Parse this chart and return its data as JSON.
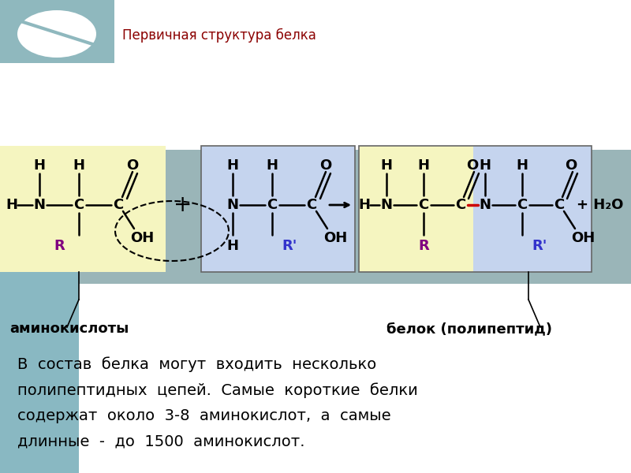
{
  "title": "Первичная структура белка",
  "title_color": "#8B0000",
  "bg_color": "#ffffff",
  "teal_sidebar": "#89b8c2",
  "teal_top_bar": "#8fb8be",
  "yellow_color": "#f5f5c0",
  "blue_color": "#c5d4ee",
  "gray_bg": "#9ab5b8",
  "white_bottom": "#ffffff",
  "label_amino": "аминокислоты",
  "label_protein": "белок (полипептид)",
  "body_line1": "В  состав  белка  могут  входить  несколько",
  "body_line2": "полипептидных  цепей.  Самые  короткие  белки",
  "body_line3": "содержат  около  3-8  аминокислот,  а  самые",
  "body_line4": "длинные  -  до  1500  аминокислот.",
  "peptide_bond_color": "#cc0000",
  "R_color": "#800080",
  "Rprime_color": "#3333cc",
  "fs": 13,
  "fs_label": 13,
  "fs_body": 14
}
